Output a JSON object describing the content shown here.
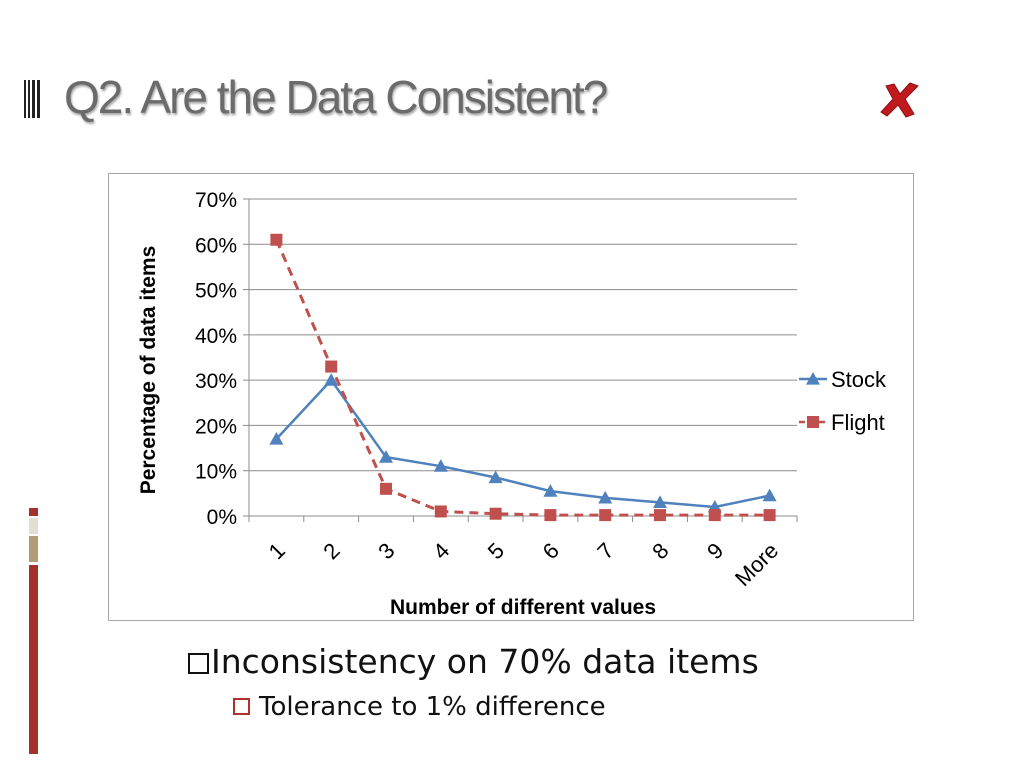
{
  "slide": {
    "title": "Q2. Are the Data Consistent?",
    "status_icon": "cross-mark-icon",
    "bullet_main": "Inconsistency on 70% data items",
    "bullet_sub": "Tolerance to 1% difference"
  },
  "colors": {
    "title": "#6b6b6b",
    "cross": "#c0191e",
    "stock": "#4f81bd",
    "flight": "#c0504d",
    "grid": "#8c8c8c",
    "sub_bullet_box": "#b0322a"
  },
  "chart_data": {
    "type": "line",
    "title": "",
    "xlabel": "Number of different values",
    "ylabel": "Percentage of data items",
    "categories": [
      "1",
      "2",
      "3",
      "4",
      "5",
      "6",
      "7",
      "8",
      "9",
      "More"
    ],
    "ylim": [
      0,
      70
    ],
    "yticks": [
      0,
      10,
      20,
      30,
      40,
      50,
      60,
      70
    ],
    "ytick_labels": [
      "0%",
      "10%",
      "20%",
      "30%",
      "40%",
      "50%",
      "60%",
      "70%"
    ],
    "grid": true,
    "legend_position": "right",
    "series": [
      {
        "name": "Stock",
        "marker": "triangle",
        "line": "solid",
        "values": [
          17,
          30,
          13,
          11,
          8.5,
          5.5,
          4,
          3,
          2,
          4.5
        ]
      },
      {
        "name": "Flight",
        "marker": "square",
        "line": "dashed",
        "values": [
          61,
          33,
          6,
          1,
          0.5,
          0.2,
          0.2,
          0.2,
          0.2,
          0.2
        ]
      }
    ]
  }
}
